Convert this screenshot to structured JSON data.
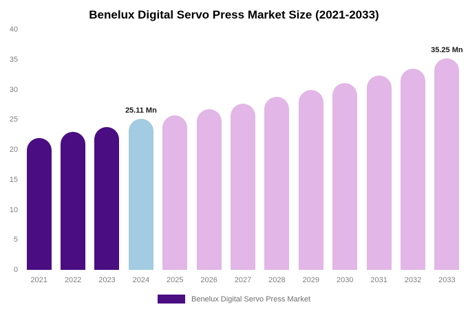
{
  "chart_data": {
    "type": "bar",
    "title": "Benelux Digital Servo Press Market Size (2021-2033)",
    "xlabel": "",
    "ylabel": "",
    "ylim": [
      0,
      40
    ],
    "yticks": [
      0,
      5,
      10,
      15,
      20,
      25,
      30,
      35,
      40
    ],
    "grid": false,
    "legend_position": "bottom",
    "palette": {
      "purple": "#4a0d82",
      "blue": "#a3cbe1",
      "pink": "#e2b6e6"
    },
    "points": [
      {
        "year": "2021",
        "value": 22.0,
        "color": "purple"
      },
      {
        "year": "2022",
        "value": 23.0,
        "color": "purple"
      },
      {
        "year": "2023",
        "value": 23.8,
        "color": "purple"
      },
      {
        "year": "2024",
        "value": 25.11,
        "color": "blue",
        "label": "25.11 Mn"
      },
      {
        "year": "2025",
        "value": 25.7,
        "color": "pink"
      },
      {
        "year": "2026",
        "value": 26.7,
        "color": "pink"
      },
      {
        "year": "2027",
        "value": 27.7,
        "color": "pink"
      },
      {
        "year": "2028",
        "value": 28.8,
        "color": "pink"
      },
      {
        "year": "2029",
        "value": 30.0,
        "color": "pink"
      },
      {
        "year": "2030",
        "value": 31.1,
        "color": "pink"
      },
      {
        "year": "2031",
        "value": 32.3,
        "color": "pink"
      },
      {
        "year": "2032",
        "value": 33.5,
        "color": "pink"
      },
      {
        "year": "2033",
        "value": 35.25,
        "color": "pink",
        "label": "35.25 Mn"
      }
    ],
    "legend": {
      "label": "Benelux Digital Servo Press Market",
      "swatch_color": "#4a0d82"
    }
  }
}
